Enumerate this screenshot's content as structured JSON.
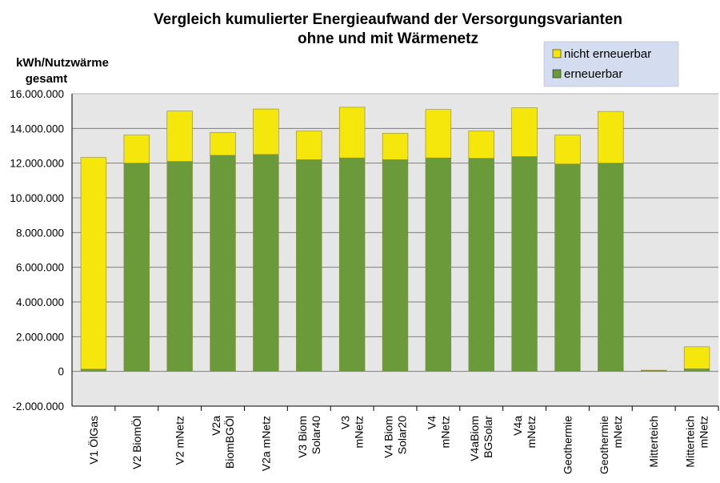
{
  "chart_data": {
    "type": "bar",
    "stacked": true,
    "title_lines": [
      "Vergleich kumulierter Energieaufwand  der Versorgungsvarianten",
      "ohne und mit Wärmenetz"
    ],
    "ylabel_lines": [
      "kWh/Nutzwärme",
      "gesamt"
    ],
    "ylim": [
      -2000000,
      16000000
    ],
    "yticks": [
      -2000000,
      0,
      2000000,
      4000000,
      6000000,
      8000000,
      10000000,
      12000000,
      14000000,
      16000000
    ],
    "ytick_labels": [
      "-2.000.000",
      "0",
      "2.000.000",
      "4.000.000",
      "6.000.000",
      "8.000.000",
      "10.000.000",
      "12.000.000",
      "14.000.000",
      "16.000.000"
    ],
    "grid": true,
    "legend_position": "top-right",
    "categories": [
      [
        "V1 ÖlGas"
      ],
      [
        "V2 BiomÖl"
      ],
      [
        "V2 mNetz"
      ],
      [
        "V2a",
        "BiomBGÖl"
      ],
      [
        "V2a mNetz"
      ],
      [
        "V3 Biom",
        "Solar40"
      ],
      [
        "V3",
        "mNetz"
      ],
      [
        "V4 Biom",
        "Solar20"
      ],
      [
        "V4",
        "mNetz"
      ],
      [
        "V4aBiom",
        "BGSolar"
      ],
      [
        "V4a",
        "mNetz"
      ],
      [
        "Geothermie"
      ],
      [
        "Geothermie",
        "mNetz"
      ],
      [
        "Mitterteich"
      ],
      [
        "Mitterteich",
        "mNetz"
      ]
    ],
    "series": [
      {
        "name": "erneuerbar",
        "color": "#6a9a3a",
        "values": [
          130000,
          12000000,
          12100000,
          12450000,
          12500000,
          12200000,
          12300000,
          12200000,
          12300000,
          12280000,
          12380000,
          11950000,
          12000000,
          40000,
          150000
        ]
      },
      {
        "name": "nicht erneuerbar",
        "color": "#f5e60c",
        "values": [
          12200000,
          1620000,
          2900000,
          1320000,
          2620000,
          1650000,
          2920000,
          1520000,
          2790000,
          1580000,
          2810000,
          1670000,
          2980000,
          30000,
          1270000
        ]
      }
    ],
    "legend_order": [
      "nicht erneuerbar",
      "erneuerbar"
    ]
  }
}
